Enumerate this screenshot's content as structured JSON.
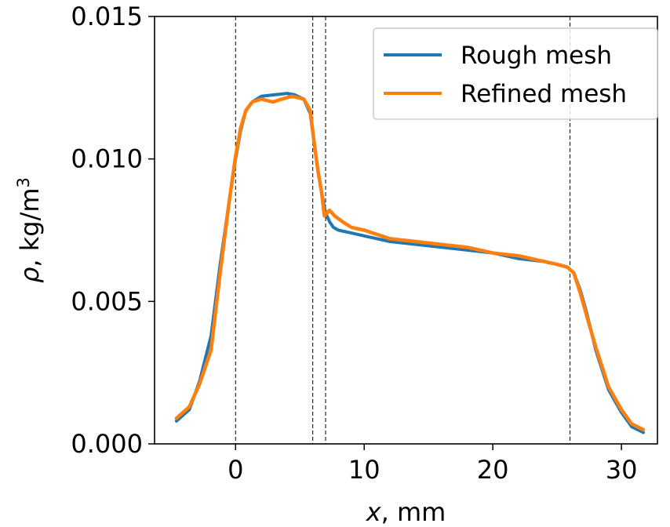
{
  "chart_data": {
    "type": "line",
    "xlabel_var": "x",
    "xlabel_unit": ", mm",
    "ylabel_var": "ρ",
    "ylabel_unit": ", kg/m",
    "ylabel_sup": "3",
    "xlim": [
      -6.3,
      32.8
    ],
    "ylim": [
      0,
      0.015
    ],
    "xticks": [
      0,
      10,
      20,
      30
    ],
    "xtick_labels": [
      "0",
      "10",
      "20",
      "30"
    ],
    "yticks": [
      0,
      0.005,
      0.01,
      0.015
    ],
    "ytick_labels": [
      "0.000",
      "0.005",
      "0.010",
      "0.015"
    ],
    "grid": false,
    "legend_position": "top-right",
    "vlines": [
      0,
      6,
      7,
      26
    ],
    "series": [
      {
        "name": "Rough mesh",
        "color": "#1f77b4",
        "x": [
          -4.6,
          -3.6,
          -2.8,
          -1.9,
          -1.2,
          -0.5,
          0,
          0.4,
          0.8,
          1.3,
          2,
          3,
          4,
          4.6,
          5.3,
          5.8,
          6.1,
          6.4,
          6.7,
          7,
          7.3,
          7.6,
          8,
          9,
          10,
          12,
          14,
          16,
          18,
          20,
          22,
          24,
          25,
          25.8,
          26.3,
          26.8,
          27.3,
          28,
          29,
          30,
          30.8,
          31.7
        ],
        "y": [
          0.0008,
          0.0012,
          0.0022,
          0.0038,
          0.0063,
          0.0085,
          0.01,
          0.011,
          0.0117,
          0.012,
          0.0122,
          0.01225,
          0.0123,
          0.01225,
          0.0121,
          0.0116,
          0.0106,
          0.0096,
          0.0088,
          0.0081,
          0.0078,
          0.0076,
          0.0075,
          0.0074,
          0.0073,
          0.0071,
          0.007,
          0.0069,
          0.0068,
          0.0067,
          0.0065,
          0.0064,
          0.0063,
          0.0062,
          0.006,
          0.0054,
          0.0046,
          0.0033,
          0.0019,
          0.0011,
          0.0006,
          0.0004
        ]
      },
      {
        "name": "Refined mesh",
        "color": "#ff7f0e",
        "x": [
          -4.6,
          -3.6,
          -2.8,
          -1.9,
          -1.2,
          -0.5,
          0,
          0.4,
          0.8,
          1.3,
          2,
          2.9,
          3.6,
          4.4,
          5.3,
          5.8,
          6.1,
          6.4,
          6.7,
          6.9,
          7.3,
          7.7,
          8.3,
          9,
          10,
          12,
          14,
          16,
          18,
          20,
          22,
          24,
          25,
          25.8,
          26.3,
          26.8,
          27.3,
          28,
          29,
          30,
          30.8,
          31.7
        ],
        "y": [
          0.0009,
          0.0013,
          0.0021,
          0.0033,
          0.006,
          0.0085,
          0.0101,
          0.0111,
          0.0117,
          0.012,
          0.0121,
          0.012,
          0.0121,
          0.0122,
          0.0121,
          0.0117,
          0.0106,
          0.0096,
          0.0088,
          0.008,
          0.0082,
          0.008,
          0.0078,
          0.0076,
          0.0075,
          0.0072,
          0.0071,
          0.007,
          0.0069,
          0.0067,
          0.0066,
          0.0064,
          0.0063,
          0.0062,
          0.006,
          0.0053,
          0.0045,
          0.0034,
          0.002,
          0.0012,
          0.0007,
          0.0005
        ]
      }
    ]
  }
}
